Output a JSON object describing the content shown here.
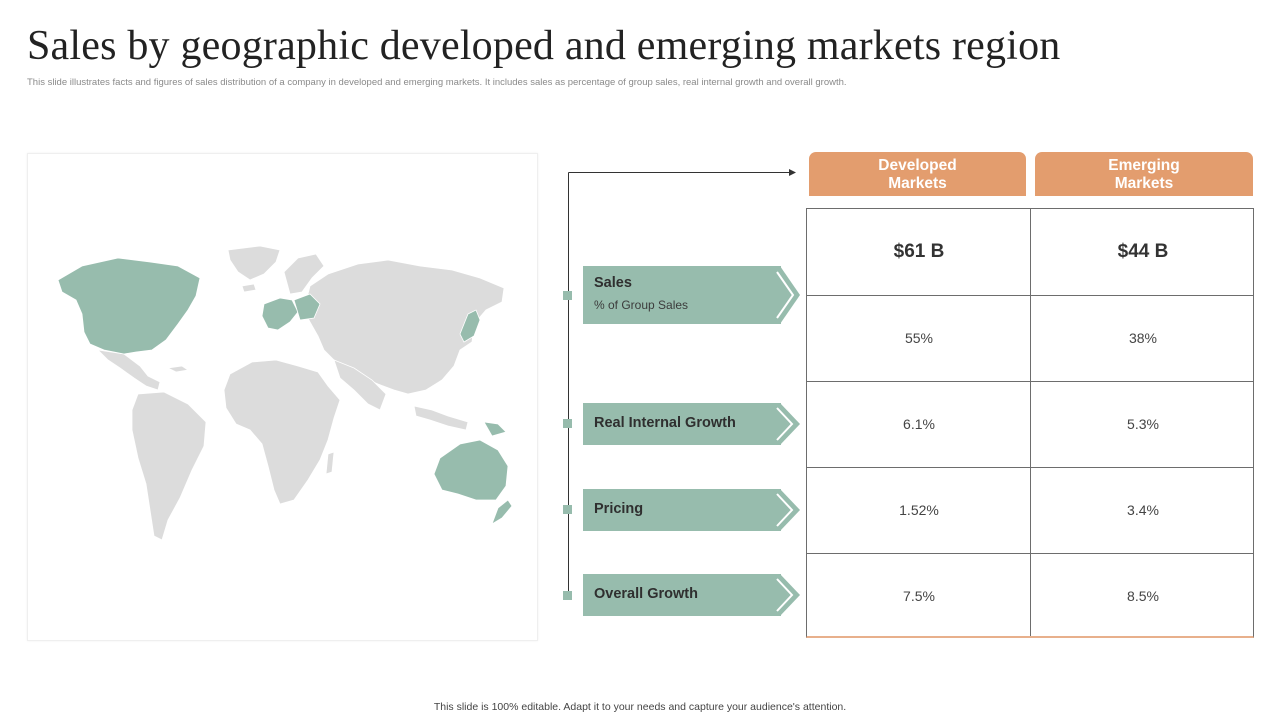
{
  "slide": {
    "title": "Sales by geographic developed and emerging markets region",
    "subtitle": "This slide illustrates facts and figures of sales distribution of a company in developed and emerging markets. It includes sales as percentage of group sales, real internal growth and overall growth.",
    "footer": "This slide is 100% editable. Adapt it to your needs and capture your audience's attention."
  },
  "colors": {
    "accent_orange": "#e39d6e",
    "accent_green": "#97bcad",
    "map_land": "#dcdcdc",
    "map_highlight": "#97bcad"
  },
  "table": {
    "columns": [
      "Developed Markets",
      "Emerging Markets"
    ],
    "rows": [
      {
        "label": "Sales",
        "sublabel": "% of Group Sales",
        "values": [
          "$61 B",
          "$44 B"
        ],
        "values2": [
          "55%",
          "38%"
        ]
      },
      {
        "label": "Real Internal Growth",
        "values": [
          "6.1%",
          "5.3%"
        ]
      },
      {
        "label": "Pricing",
        "values": [
          "1.52%",
          "3.4%"
        ]
      },
      {
        "label": "Overall Growth",
        "values": [
          "7.5%",
          "8.5%"
        ]
      }
    ]
  }
}
